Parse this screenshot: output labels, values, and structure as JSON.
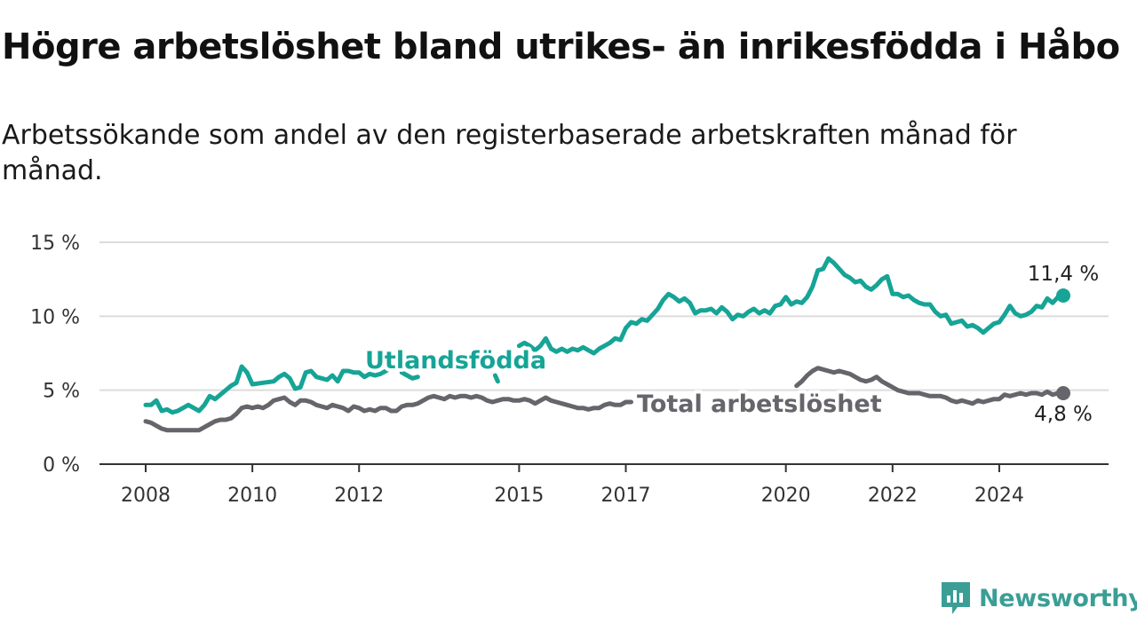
{
  "title": "Högre arbetslöshet bland utrikes- än inrikesfödda i Håbo",
  "subtitle": "Arbetssökande som andel av den registerbaserade arbetskraften månad för månad.",
  "brand": {
    "name": "Newsworthy",
    "icon": "newsworthy-logo-icon",
    "color": "#3a9e95"
  },
  "chart_data": {
    "type": "line",
    "x_label": "",
    "y_label": "",
    "ylim": [
      0,
      15
    ],
    "xlim": [
      2008,
      2025.5
    ],
    "y_ticks": [
      0,
      5,
      10,
      15
    ],
    "y_tick_labels": [
      "0 %",
      "5 %",
      "10 %",
      "15 %"
    ],
    "x_ticks": [
      2008,
      2010,
      2012,
      2015,
      2017,
      2020,
      2022,
      2024
    ],
    "x_tick_labels": [
      "2008",
      "2010",
      "2012",
      "2015",
      "2017",
      "2020",
      "2022",
      "2024"
    ],
    "grid": true,
    "series": [
      {
        "name": "Utlandsfödda",
        "color": "#16a496",
        "end_label": "11,4 %",
        "points": [
          [
            2008.0,
            4.0
          ],
          [
            2008.1,
            4.0
          ],
          [
            2008.2,
            4.3
          ],
          [
            2008.3,
            3.6
          ],
          [
            2008.4,
            3.7
          ],
          [
            2008.5,
            3.5
          ],
          [
            2008.6,
            3.6
          ],
          [
            2008.7,
            3.8
          ],
          [
            2008.8,
            4.0
          ],
          [
            2008.9,
            3.8
          ],
          [
            2009.0,
            3.6
          ],
          [
            2009.1,
            4.0
          ],
          [
            2009.2,
            4.6
          ],
          [
            2009.3,
            4.4
          ],
          [
            2009.4,
            4.7
          ],
          [
            2009.5,
            5.0
          ],
          [
            2009.6,
            5.3
          ],
          [
            2009.7,
            5.5
          ],
          [
            2009.8,
            6.6
          ],
          [
            2009.9,
            6.2
          ],
          [
            2010.0,
            5.4
          ],
          [
            2010.2,
            5.5
          ],
          [
            2010.4,
            5.6
          ],
          [
            2010.5,
            5.9
          ],
          [
            2010.6,
            6.1
          ],
          [
            2010.7,
            5.8
          ],
          [
            2010.8,
            5.1
          ],
          [
            2010.9,
            5.2
          ],
          [
            2011.0,
            6.2
          ],
          [
            2011.1,
            6.3
          ],
          [
            2011.2,
            5.9
          ],
          [
            2011.3,
            5.8
          ],
          [
            2011.4,
            5.7
          ],
          [
            2011.5,
            6.0
          ],
          [
            2011.6,
            5.6
          ],
          [
            2011.7,
            6.3
          ],
          [
            2011.8,
            6.3
          ],
          [
            2011.9,
            6.2
          ],
          [
            2012.0,
            6.2
          ],
          [
            2012.1,
            5.9
          ],
          [
            2012.2,
            6.1
          ],
          [
            2012.3,
            6.0
          ],
          [
            2012.4,
            6.1
          ],
          [
            2012.5,
            6.3
          ],
          [
            2012.55,
            6.4
          ],
          null,
          [
            2012.8,
            6.2
          ],
          [
            2012.9,
            6.0
          ],
          [
            2013.0,
            5.8
          ],
          [
            2013.1,
            5.9
          ],
          null,
          [
            2014.55,
            6.0
          ],
          [
            2014.6,
            5.6
          ],
          null,
          [
            2015.0,
            8.0
          ],
          [
            2015.1,
            8.2
          ],
          [
            2015.2,
            8.0
          ],
          [
            2015.3,
            7.7
          ],
          [
            2015.4,
            8.0
          ],
          [
            2015.5,
            8.5
          ],
          [
            2015.6,
            7.8
          ],
          [
            2015.7,
            7.6
          ],
          [
            2015.8,
            7.8
          ],
          [
            2015.9,
            7.6
          ],
          [
            2016.0,
            7.8
          ],
          [
            2016.1,
            7.7
          ],
          [
            2016.2,
            7.9
          ],
          [
            2016.3,
            7.7
          ],
          [
            2016.4,
            7.5
          ],
          [
            2016.5,
            7.8
          ],
          [
            2016.6,
            8.0
          ],
          [
            2016.7,
            8.2
          ],
          [
            2016.8,
            8.5
          ],
          [
            2016.9,
            8.4
          ],
          [
            2017.0,
            9.2
          ],
          [
            2017.1,
            9.6
          ],
          [
            2017.2,
            9.5
          ],
          [
            2017.3,
            9.8
          ],
          [
            2017.4,
            9.7
          ],
          [
            2017.5,
            10.1
          ],
          [
            2017.6,
            10.5
          ],
          [
            2017.7,
            11.1
          ],
          [
            2017.8,
            11.5
          ],
          [
            2017.9,
            11.3
          ],
          [
            2018.0,
            11.0
          ],
          [
            2018.1,
            11.2
          ],
          [
            2018.2,
            10.9
          ],
          [
            2018.3,
            10.2
          ],
          [
            2018.4,
            10.4
          ],
          [
            2018.5,
            10.4
          ],
          [
            2018.6,
            10.5
          ],
          [
            2018.7,
            10.2
          ],
          [
            2018.8,
            10.6
          ],
          [
            2018.9,
            10.3
          ],
          [
            2019.0,
            9.8
          ],
          [
            2019.1,
            10.1
          ],
          [
            2019.2,
            10.0
          ],
          [
            2019.3,
            10.3
          ],
          [
            2019.4,
            10.5
          ],
          [
            2019.5,
            10.2
          ],
          [
            2019.6,
            10.4
          ],
          [
            2019.7,
            10.2
          ],
          [
            2019.8,
            10.7
          ],
          [
            2019.9,
            10.8
          ],
          [
            2020.0,
            11.3
          ],
          [
            2020.1,
            10.8
          ],
          [
            2020.2,
            11.0
          ],
          [
            2020.3,
            10.9
          ],
          [
            2020.4,
            11.3
          ],
          [
            2020.5,
            12.0
          ],
          [
            2020.6,
            13.1
          ],
          [
            2020.7,
            13.2
          ],
          [
            2020.8,
            13.9
          ],
          [
            2020.9,
            13.6
          ],
          [
            2021.0,
            13.2
          ],
          [
            2021.1,
            12.8
          ],
          [
            2021.2,
            12.6
          ],
          [
            2021.3,
            12.3
          ],
          [
            2021.4,
            12.4
          ],
          [
            2021.5,
            12.0
          ],
          [
            2021.6,
            11.8
          ],
          [
            2021.7,
            12.1
          ],
          [
            2021.8,
            12.5
          ],
          [
            2021.9,
            12.7
          ],
          [
            2022.0,
            11.5
          ],
          [
            2022.1,
            11.5
          ],
          [
            2022.2,
            11.3
          ],
          [
            2022.3,
            11.4
          ],
          [
            2022.4,
            11.1
          ],
          [
            2022.5,
            10.9
          ],
          [
            2022.6,
            10.8
          ],
          [
            2022.7,
            10.8
          ],
          [
            2022.8,
            10.3
          ],
          [
            2022.9,
            10.0
          ],
          [
            2023.0,
            10.1
          ],
          [
            2023.1,
            9.5
          ],
          [
            2023.2,
            9.6
          ],
          [
            2023.3,
            9.7
          ],
          [
            2023.4,
            9.3
          ],
          [
            2023.5,
            9.4
          ],
          [
            2023.6,
            9.2
          ],
          [
            2023.7,
            8.9
          ],
          [
            2023.8,
            9.2
          ],
          [
            2023.9,
            9.5
          ],
          [
            2024.0,
            9.6
          ],
          [
            2024.1,
            10.1
          ],
          [
            2024.2,
            10.7
          ],
          [
            2024.3,
            10.2
          ],
          [
            2024.4,
            10.0
          ],
          [
            2024.5,
            10.1
          ],
          [
            2024.6,
            10.3
          ],
          [
            2024.7,
            10.7
          ],
          [
            2024.8,
            10.6
          ],
          [
            2024.9,
            11.2
          ],
          [
            2025.0,
            10.9
          ],
          [
            2025.1,
            11.3
          ],
          [
            2025.2,
            11.4
          ]
        ]
      },
      {
        "name": "Total arbetslöshet",
        "color": "#66656b",
        "end_label": "4,8 %",
        "points": [
          [
            2008.0,
            2.9
          ],
          [
            2008.1,
            2.8
          ],
          [
            2008.2,
            2.6
          ],
          [
            2008.3,
            2.4
          ],
          [
            2008.4,
            2.3
          ],
          [
            2008.5,
            2.3
          ],
          [
            2008.6,
            2.3
          ],
          [
            2008.7,
            2.3
          ],
          [
            2008.8,
            2.3
          ],
          [
            2008.9,
            2.3
          ],
          [
            2009.0,
            2.3
          ],
          [
            2009.1,
            2.5
          ],
          [
            2009.2,
            2.7
          ],
          [
            2009.3,
            2.9
          ],
          [
            2009.4,
            3.0
          ],
          [
            2009.5,
            3.0
          ],
          [
            2009.6,
            3.1
          ],
          [
            2009.7,
            3.4
          ],
          [
            2009.8,
            3.8
          ],
          [
            2009.9,
            3.9
          ],
          [
            2010.0,
            3.8
          ],
          [
            2010.1,
            3.9
          ],
          [
            2010.2,
            3.8
          ],
          [
            2010.3,
            4.0
          ],
          [
            2010.4,
            4.3
          ],
          [
            2010.5,
            4.4
          ],
          [
            2010.6,
            4.5
          ],
          [
            2010.7,
            4.2
          ],
          [
            2010.8,
            4.0
          ],
          [
            2010.9,
            4.3
          ],
          [
            2011.0,
            4.3
          ],
          [
            2011.1,
            4.2
          ],
          [
            2011.2,
            4.0
          ],
          [
            2011.3,
            3.9
          ],
          [
            2011.4,
            3.8
          ],
          [
            2011.5,
            4.0
          ],
          [
            2011.6,
            3.9
          ],
          [
            2011.7,
            3.8
          ],
          [
            2011.8,
            3.6
          ],
          [
            2011.9,
            3.9
          ],
          [
            2012.0,
            3.8
          ],
          [
            2012.1,
            3.6
          ],
          [
            2012.2,
            3.7
          ],
          [
            2012.3,
            3.6
          ],
          [
            2012.4,
            3.8
          ],
          [
            2012.5,
            3.8
          ],
          [
            2012.6,
            3.6
          ],
          [
            2012.7,
            3.6
          ],
          [
            2012.8,
            3.9
          ],
          [
            2012.9,
            4.0
          ],
          [
            2013.0,
            4.0
          ],
          [
            2013.1,
            4.1
          ],
          [
            2013.2,
            4.3
          ],
          [
            2013.3,
            4.5
          ],
          [
            2013.4,
            4.6
          ],
          [
            2013.5,
            4.5
          ],
          [
            2013.6,
            4.4
          ],
          [
            2013.7,
            4.6
          ],
          [
            2013.8,
            4.5
          ],
          [
            2013.9,
            4.6
          ],
          [
            2014.0,
            4.6
          ],
          [
            2014.1,
            4.5
          ],
          [
            2014.2,
            4.6
          ],
          [
            2014.3,
            4.5
          ],
          [
            2014.4,
            4.3
          ],
          [
            2014.5,
            4.2
          ],
          [
            2014.6,
            4.3
          ],
          [
            2014.7,
            4.4
          ],
          [
            2014.8,
            4.4
          ],
          [
            2014.9,
            4.3
          ],
          [
            2015.0,
            4.3
          ],
          [
            2015.1,
            4.4
          ],
          [
            2015.2,
            4.3
          ],
          [
            2015.3,
            4.1
          ],
          [
            2015.4,
            4.3
          ],
          [
            2015.5,
            4.5
          ],
          [
            2015.6,
            4.3
          ],
          [
            2015.7,
            4.2
          ],
          [
            2015.8,
            4.1
          ],
          [
            2015.9,
            4.0
          ],
          [
            2016.0,
            3.9
          ],
          [
            2016.1,
            3.8
          ],
          [
            2016.2,
            3.8
          ],
          [
            2016.3,
            3.7
          ],
          [
            2016.4,
            3.8
          ],
          [
            2016.5,
            3.8
          ],
          [
            2016.6,
            4.0
          ],
          [
            2016.7,
            4.1
          ],
          [
            2016.8,
            4.0
          ],
          [
            2016.9,
            4.0
          ],
          [
            2017.0,
            4.2
          ],
          [
            2017.1,
            4.2
          ],
          null,
          [
            2020.2,
            5.3
          ],
          [
            2020.3,
            5.6
          ],
          [
            2020.4,
            6.0
          ],
          [
            2020.5,
            6.3
          ],
          [
            2020.6,
            6.5
          ],
          [
            2020.7,
            6.4
          ],
          [
            2020.8,
            6.3
          ],
          [
            2020.9,
            6.2
          ],
          [
            2021.0,
            6.3
          ],
          [
            2021.1,
            6.2
          ],
          [
            2021.2,
            6.1
          ],
          [
            2021.3,
            5.9
          ],
          [
            2021.4,
            5.7
          ],
          [
            2021.5,
            5.6
          ],
          [
            2021.6,
            5.7
          ],
          [
            2021.7,
            5.9
          ],
          [
            2021.8,
            5.6
          ],
          [
            2021.9,
            5.4
          ],
          [
            2022.0,
            5.2
          ],
          [
            2022.1,
            5.0
          ],
          [
            2022.2,
            4.9
          ],
          [
            2022.3,
            4.8
          ],
          [
            2022.4,
            4.8
          ],
          [
            2022.5,
            4.8
          ],
          [
            2022.6,
            4.7
          ],
          [
            2022.7,
            4.6
          ],
          [
            2022.8,
            4.6
          ],
          [
            2022.9,
            4.6
          ],
          [
            2023.0,
            4.5
          ],
          [
            2023.1,
            4.3
          ],
          [
            2023.2,
            4.2
          ],
          [
            2023.3,
            4.3
          ],
          [
            2023.4,
            4.2
          ],
          [
            2023.5,
            4.1
          ],
          [
            2023.6,
            4.3
          ],
          [
            2023.7,
            4.2
          ],
          [
            2023.8,
            4.3
          ],
          [
            2023.9,
            4.4
          ],
          [
            2024.0,
            4.4
          ],
          [
            2024.1,
            4.7
          ],
          [
            2024.2,
            4.6
          ],
          [
            2024.3,
            4.7
          ],
          [
            2024.4,
            4.8
          ],
          [
            2024.5,
            4.7
          ],
          [
            2024.6,
            4.8
          ],
          [
            2024.7,
            4.8
          ],
          [
            2024.8,
            4.7
          ],
          [
            2024.9,
            4.9
          ],
          [
            2025.0,
            4.7
          ],
          [
            2025.1,
            4.8
          ],
          [
            2025.2,
            4.8
          ]
        ]
      }
    ]
  }
}
